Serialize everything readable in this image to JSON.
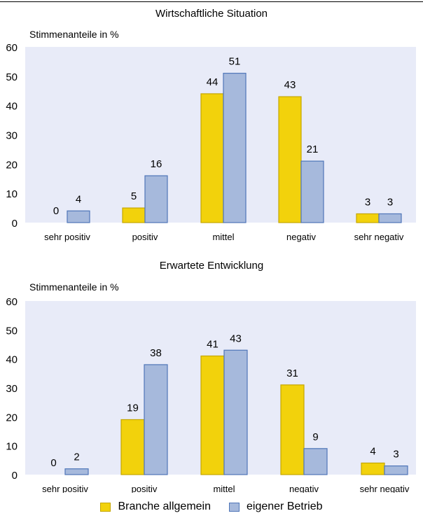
{
  "colors": {
    "branche": "#f2d20c",
    "branche_edge": "#c5a600",
    "betrieb": "#a6b9dc",
    "betrieb_edge": "#4f76b8",
    "plot_bg": "#e8ebf8"
  },
  "legend": [
    {
      "name": "Branche allgemein",
      "color_key": "branche"
    },
    {
      "name": "eigener Betrieb",
      "color_key": "betrieb"
    }
  ],
  "chart_data": [
    {
      "type": "bar",
      "title": "Wirtschaftliche Situation",
      "ylabel": "Stimmenanteile in %",
      "categories": [
        "sehr positiv",
        "positiv",
        "mittel",
        "negativ",
        "sehr negativ"
      ],
      "series": [
        {
          "name": "Branche allgemein",
          "values": [
            0,
            5,
            44,
            43,
            3
          ]
        },
        {
          "name": "eigener Betrieb",
          "values": [
            4,
            16,
            51,
            21,
            3
          ]
        }
      ],
      "ylim": [
        0,
        60
      ],
      "yticks": [
        0,
        10,
        20,
        30,
        40,
        50,
        60
      ],
      "grid": false,
      "legend": "bottom"
    },
    {
      "type": "bar",
      "title": "Erwartete Entwicklung",
      "ylabel": "Stimmenanteile in %",
      "categories": [
        "sehr positiv",
        "positiv",
        "mittel",
        "negativ",
        "sehr negativ"
      ],
      "series": [
        {
          "name": "Branche allgemein",
          "values": [
            0,
            19,
            41,
            31,
            4
          ]
        },
        {
          "name": "eigener Betrieb",
          "values": [
            2,
            38,
            43,
            9,
            3
          ]
        }
      ],
      "ylim": [
        0,
        60
      ],
      "yticks": [
        0,
        10,
        20,
        30,
        40,
        50,
        60
      ],
      "grid": false,
      "legend": "bottom"
    }
  ]
}
